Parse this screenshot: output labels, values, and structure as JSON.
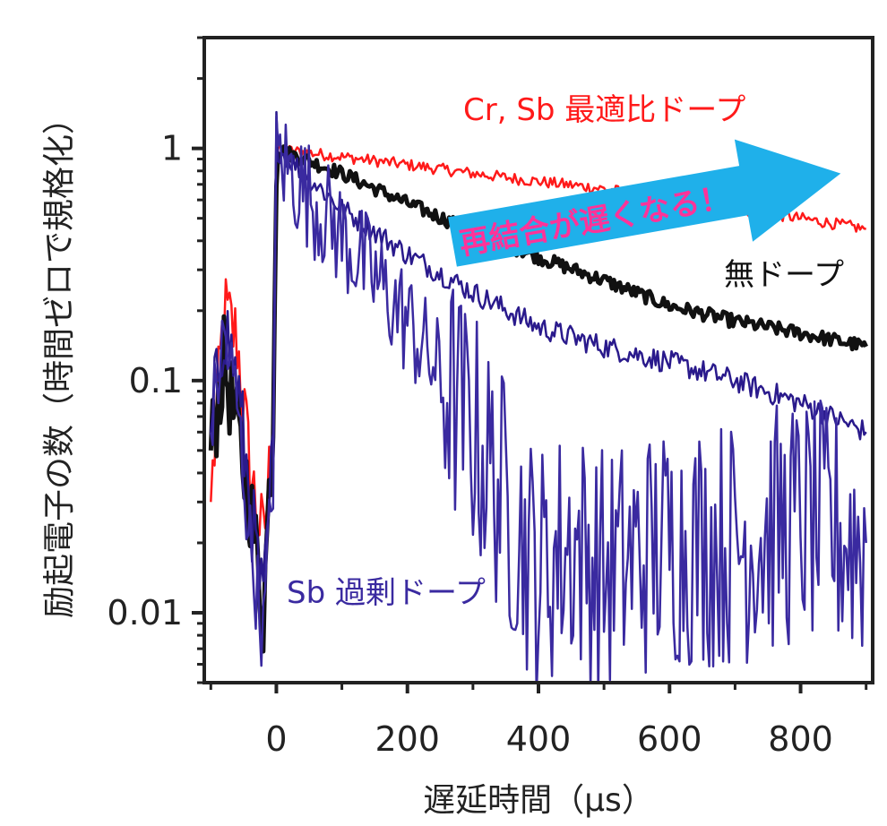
{
  "chart_data": {
    "type": "line",
    "xlabel": "遅延時間（μs）",
    "ylabel": "励起電子の数（時間ゼロで規格化）",
    "x_scale": "linear",
    "y_scale": "log",
    "xlim": [
      -110,
      910
    ],
    "ylim": [
      0.005,
      3
    ],
    "x_ticks": [
      0,
      200,
      400,
      600,
      800
    ],
    "x_tick_labels": [
      "0",
      "200",
      "400",
      "600",
      "800"
    ],
    "y_ticks": [
      0.01,
      0.1,
      1
    ],
    "y_tick_labels": [
      "0.01",
      "0.1",
      "1"
    ],
    "grid": false,
    "series": [
      {
        "name": "Cr, Sb 最適比ドープ",
        "color": "#ff1a1a",
        "x": [
          -100,
          -80,
          -60,
          -40,
          -20,
          -5,
          0,
          20,
          100,
          200,
          300,
          400,
          500,
          600,
          700,
          800,
          900
        ],
        "y": [
          0.03,
          0.2,
          0.15,
          0.04,
          0.02,
          0.06,
          1.0,
          0.98,
          0.92,
          0.85,
          0.78,
          0.72,
          0.67,
          0.6,
          0.55,
          0.5,
          0.45
        ]
      },
      {
        "name": "無ドープ",
        "color": "#111111",
        "x": [
          -100,
          -80,
          -60,
          -40,
          -20,
          -5,
          0,
          20,
          100,
          200,
          300,
          400,
          500,
          600,
          700,
          800,
          900
        ],
        "y": [
          0.05,
          0.12,
          0.06,
          0.03,
          0.01,
          0.07,
          1.0,
          0.95,
          0.78,
          0.58,
          0.44,
          0.34,
          0.27,
          0.21,
          0.18,
          0.16,
          0.14
        ]
      },
      {
        "name": "Sb 過剰ドープ",
        "color": "#2a1a8c",
        "x": [
          -100,
          -80,
          -60,
          -40,
          -20,
          -5,
          0,
          20,
          100,
          200,
          300,
          400,
          500,
          600,
          700,
          800,
          900
        ],
        "y": [
          0.06,
          0.18,
          0.1,
          0.03,
          0.01,
          0.05,
          1.0,
          0.9,
          0.55,
          0.35,
          0.24,
          0.17,
          0.14,
          0.12,
          0.1,
          0.08,
          0.06
        ]
      },
      {
        "name": "Sb 過剰ドープ",
        "color": "#3a2aa0",
        "x": [
          -100,
          -80,
          -60,
          -40,
          -20,
          -5,
          0,
          20,
          100,
          200,
          300,
          350,
          400,
          450,
          500,
          600,
          700,
          800,
          900
        ],
        "y": [
          0.06,
          0.16,
          0.08,
          0.02,
          0.008,
          0.04,
          0.95,
          0.8,
          0.42,
          0.18,
          0.06,
          0.03,
          0.015,
          0.02,
          0.015,
          0.02,
          0.02,
          0.025,
          0.02
        ]
      }
    ],
    "labels": [
      {
        "text": "Cr, Sb 最適比ドープ",
        "color": "#ff1a1a"
      },
      {
        "text": "無ドープ",
        "color": "#111111"
      },
      {
        "text": "Sb 過剰ドープ",
        "color": "#3a2aa0"
      }
    ],
    "annotation": {
      "text": "再結合が遅くなる！",
      "arrow_color": "#1fb0ea",
      "text_color": "#ff3399"
    }
  }
}
